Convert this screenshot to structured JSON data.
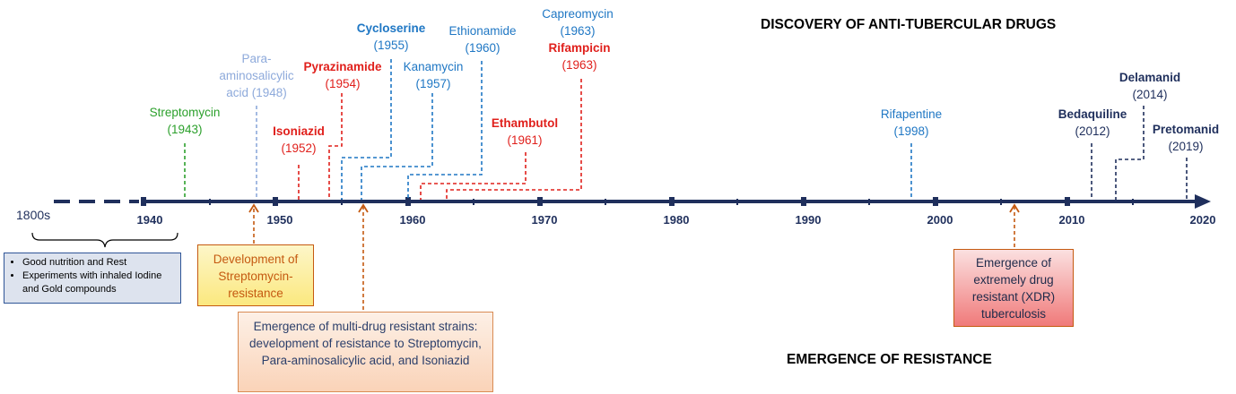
{
  "titles": {
    "discovery": "DISCOVERY OF ANTI-TUBERCULAR DRUGS",
    "resistance": "EMERGENCE OF RESISTANCE"
  },
  "timeline": {
    "start_label": "1800s",
    "years": [
      "1940",
      "1950",
      "1960",
      "1970",
      "1980",
      "1990",
      "2000",
      "2010",
      "2020"
    ]
  },
  "drugs": [
    {
      "name": "Streptomycin",
      "year": "(1943)"
    },
    {
      "name": "Para-\naminosalicylic\nacid (1948)"
    },
    {
      "name": "Isoniazid",
      "year": "(1952)"
    },
    {
      "name": "Pyrazinamide",
      "year": "(1954)"
    },
    {
      "name": "Cycloserine",
      "year": "(1955)"
    },
    {
      "name": "Kanamycin",
      "year": "(1957)"
    },
    {
      "name": "Ethionamide",
      "year": "(1960)"
    },
    {
      "name": "Ethambutol",
      "year": "(1961)"
    },
    {
      "name": "Capreomycin",
      "year": "(1963)"
    },
    {
      "name": "Rifampicin",
      "year": "(1963)"
    },
    {
      "name": "Rifapentine",
      "year": "(1998)"
    },
    {
      "name": "Bedaquiline",
      "year": "(2012)"
    },
    {
      "name": "Delamanid",
      "year": "(2014)"
    },
    {
      "name": "Pretomanid",
      "year": "(2019)"
    }
  ],
  "pre_antibiotic_era": {
    "items": [
      "Good nutrition and Rest",
      "Experiments with inhaled Iodine and Gold compounds"
    ]
  },
  "resistance_events": {
    "streptomycin": "Development of Streptomycin-resistance",
    "mdr": "Emergence of multi-drug resistant strains: development of resistance to Streptomycin, Para-aminosalicylic acid, and Isoniazid",
    "xdr": "Emergence of extremely drug resistant (XDR) tuberculosis"
  },
  "colors": {
    "axis": "#1f2f5c",
    "green": "#2ca02c",
    "light_blue": "#8eaadb",
    "blue": "#1f77c4",
    "red": "#e0201c",
    "navy": "#1f2f5c",
    "orange": "#c55a11"
  }
}
